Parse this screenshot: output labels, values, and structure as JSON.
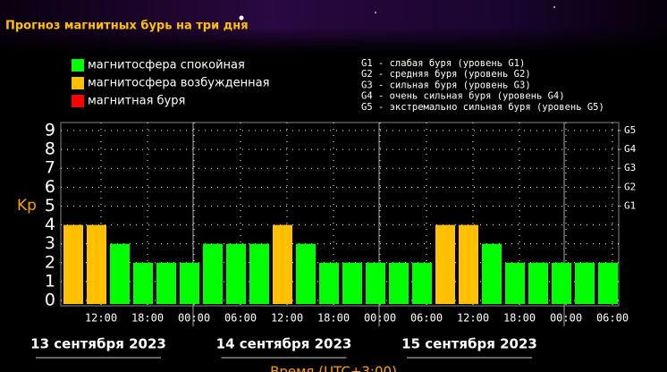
{
  "chart_data": {
    "type": "bar",
    "title": "Прогноз магнитных бурь на три дня",
    "ylabel": "Kp",
    "xlabel": "Время (UTC+3:00)",
    "legend": [
      {
        "name": "магнитосфера спокойная",
        "color": "#00ff00"
      },
      {
        "name": "магнитосфера возбужденная",
        "color": "#ffc000"
      },
      {
        "name": "магнитная буря",
        "color": "#ff0000"
      }
    ],
    "storm_levels": [
      "G1 - слабая буря (уровень G1)",
      "G2 - средняя буря (уровень G2)",
      "G3 - сильная буря (уровень G3)",
      "G4 - очень сильная буря (уровень G4)",
      "G5 - экстремально сильная буря (уровень G5)"
    ],
    "values": [
      4,
      4,
      3,
      2,
      2,
      2,
      3,
      3,
      3,
      4,
      3,
      2,
      2,
      2,
      2,
      2,
      4,
      4,
      3,
      2,
      2,
      2,
      2,
      2
    ],
    "colors": [
      "#ffc000",
      "#ffc000",
      "#00ff00",
      "#00ff00",
      "#00ff00",
      "#00ff00",
      "#00ff00",
      "#00ff00",
      "#00ff00",
      "#ffc000",
      "#00ff00",
      "#00ff00",
      "#00ff00",
      "#00ff00",
      "#00ff00",
      "#00ff00",
      "#ffc000",
      "#ffc000",
      "#00ff00",
      "#00ff00",
      "#00ff00",
      "#00ff00",
      "#00ff00",
      "#00ff00"
    ],
    "time_labels": [
      "12:00",
      "18:00",
      "00:00",
      "06:00",
      "12:00",
      "18:00",
      "00:00",
      "06:00",
      "12:00",
      "18:00",
      "00:00",
      "06:00"
    ],
    "day_labels": [
      "13 сентября 2023",
      "14 сентября 2023",
      "15 сентября 2023"
    ],
    "ylim": [
      0,
      9
    ],
    "yticks": [
      0,
      1,
      2,
      3,
      4,
      5,
      6,
      7,
      8,
      9
    ],
    "y2lim": [
      0,
      9
    ],
    "y2ticks": [
      {
        "value": 5,
        "label": "G1"
      },
      {
        "value": 6,
        "label": "G2"
      },
      {
        "value": 7,
        "label": "G3"
      },
      {
        "value": 8,
        "label": "G4"
      },
      {
        "value": 9,
        "label": "G5"
      }
    ],
    "grid": true
  }
}
